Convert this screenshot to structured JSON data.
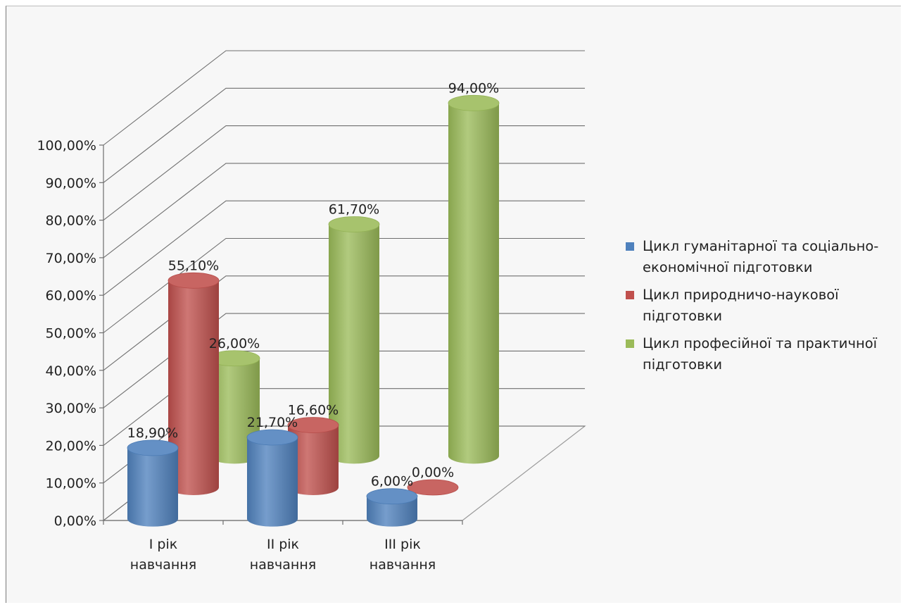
{
  "chart_data": {
    "type": "bar",
    "style": "3d-cylinder",
    "categories": [
      "I рік навчання",
      "II рік навчання",
      "III рік навчання"
    ],
    "category_lines": [
      [
        "I рік",
        "навчання"
      ],
      [
        "II рік",
        "навчання"
      ],
      [
        "III рік",
        "навчання"
      ]
    ],
    "series": [
      {
        "name": "Цикл гуманітарної та соціально-економічної підготовки",
        "name_lines": [
          "Цикл гуманітарної та соціально-",
          "економічної підготовки"
        ],
        "color": "#4f81bd",
        "values": [
          18.9,
          21.7,
          6.0
        ],
        "labels": [
          "18,90%",
          "21,70%",
          "6,00%"
        ]
      },
      {
        "name": "Цикл природничо-наукової підготовки",
        "name_lines": [
          "Цикл природничо-наукової",
          "підготовки"
        ],
        "color": "#c0504d",
        "values": [
          55.1,
          16.6,
          0.0
        ],
        "labels": [
          "55,10%",
          "16,60%",
          "0,00%"
        ]
      },
      {
        "name": "Цикл професійної та практичної підготовки",
        "name_lines": [
          "Цикл професійної та практичної",
          "підготовки"
        ],
        "color": "#9bbb59",
        "values": [
          26.0,
          61.7,
          94.0
        ],
        "labels": [
          "26,00%",
          "61,70%",
          "94,00%"
        ]
      }
    ],
    "ylim": [
      0,
      100
    ],
    "yticks": [
      "0,00%",
      "10,00%",
      "20,00%",
      "30,00%",
      "40,00%",
      "50,00%",
      "60,00%",
      "70,00%",
      "80,00%",
      "90,00%",
      "100,00%"
    ],
    "grid": true,
    "legend": "right"
  }
}
